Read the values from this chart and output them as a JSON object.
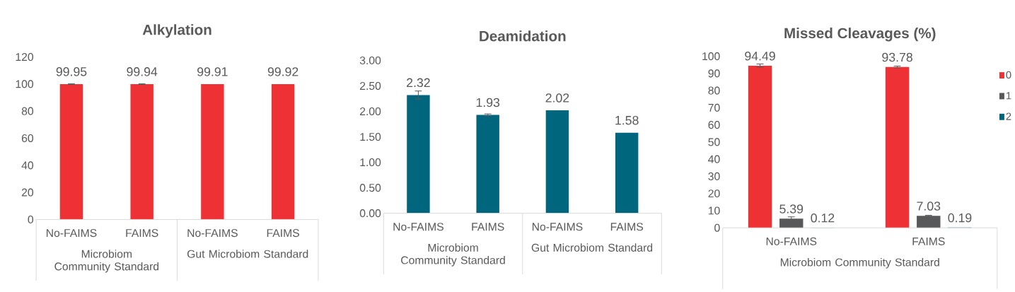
{
  "chart_data": [
    {
      "type": "bar",
      "title": "Alkylation",
      "categories": [
        "No-FAIMS",
        "FAIMS",
        "No-FAIMS",
        "FAIMS"
      ],
      "values": [
        99.95,
        99.94,
        99.91,
        99.92
      ],
      "errors": [
        0.3,
        0.3,
        null,
        null
      ],
      "color": "#ee3135",
      "ylim": [
        0,
        120
      ],
      "yticks": [
        0,
        20,
        40,
        60,
        80,
        100,
        120
      ],
      "data_labels": true,
      "grid": false,
      "legend": false,
      "annotations": [
        "Microbiom Community Standard",
        "Gut Microbiom Standard"
      ]
    },
    {
      "type": "bar",
      "title": "Deamidation",
      "categories": [
        "No-FAIMS",
        "FAIMS",
        "No-FAIMS",
        "FAIMS"
      ],
      "values": [
        2.32,
        1.93,
        2.02,
        1.58
      ],
      "errors": [
        0.08,
        0.02,
        null,
        null
      ],
      "color": "#00667e",
      "ylim": [
        0,
        3
      ],
      "yticks": [
        {
          "value": 0,
          "label": "0.00"
        },
        {
          "value": 0.5,
          "label": "0.50"
        },
        {
          "value": 1,
          "label": "1.00"
        },
        {
          "value": 1.5,
          "label": "1.50"
        },
        {
          "value": 2,
          "label": "2.00"
        },
        {
          "value": 2.5,
          "label": "2.50"
        },
        {
          "value": 3,
          "label": "3.00"
        }
      ],
      "data_labels": true,
      "grid": false,
      "legend": false,
      "annotations": [
        "Microbiom Community Standard",
        "Gut Microbiom Standard"
      ]
    },
    {
      "type": "bar",
      "title": "Missed Cleavages (%)",
      "categories": [
        "No-FAIMS",
        "FAIMS"
      ],
      "series": [
        {
          "name": "0",
          "color": "#ee3135",
          "values": [
            94.49,
            93.78
          ],
          "errors": [
            1.0,
            0.5
          ]
        },
        {
          "name": "1",
          "color": "#58585a",
          "values": [
            5.39,
            7.03
          ],
          "errors": [
            1.0,
            0.3
          ]
        },
        {
          "name": "2",
          "color": "#00667e",
          "values": [
            0.12,
            0.19
          ]
        }
      ],
      "ylim": [
        0,
        100
      ],
      "yticks": [
        0,
        10,
        20,
        30,
        40,
        50,
        60,
        70,
        80,
        90,
        100
      ],
      "data_labels": true,
      "grid": false,
      "legend": "right",
      "annotations": [
        "Microbiom Community Standard"
      ]
    }
  ]
}
